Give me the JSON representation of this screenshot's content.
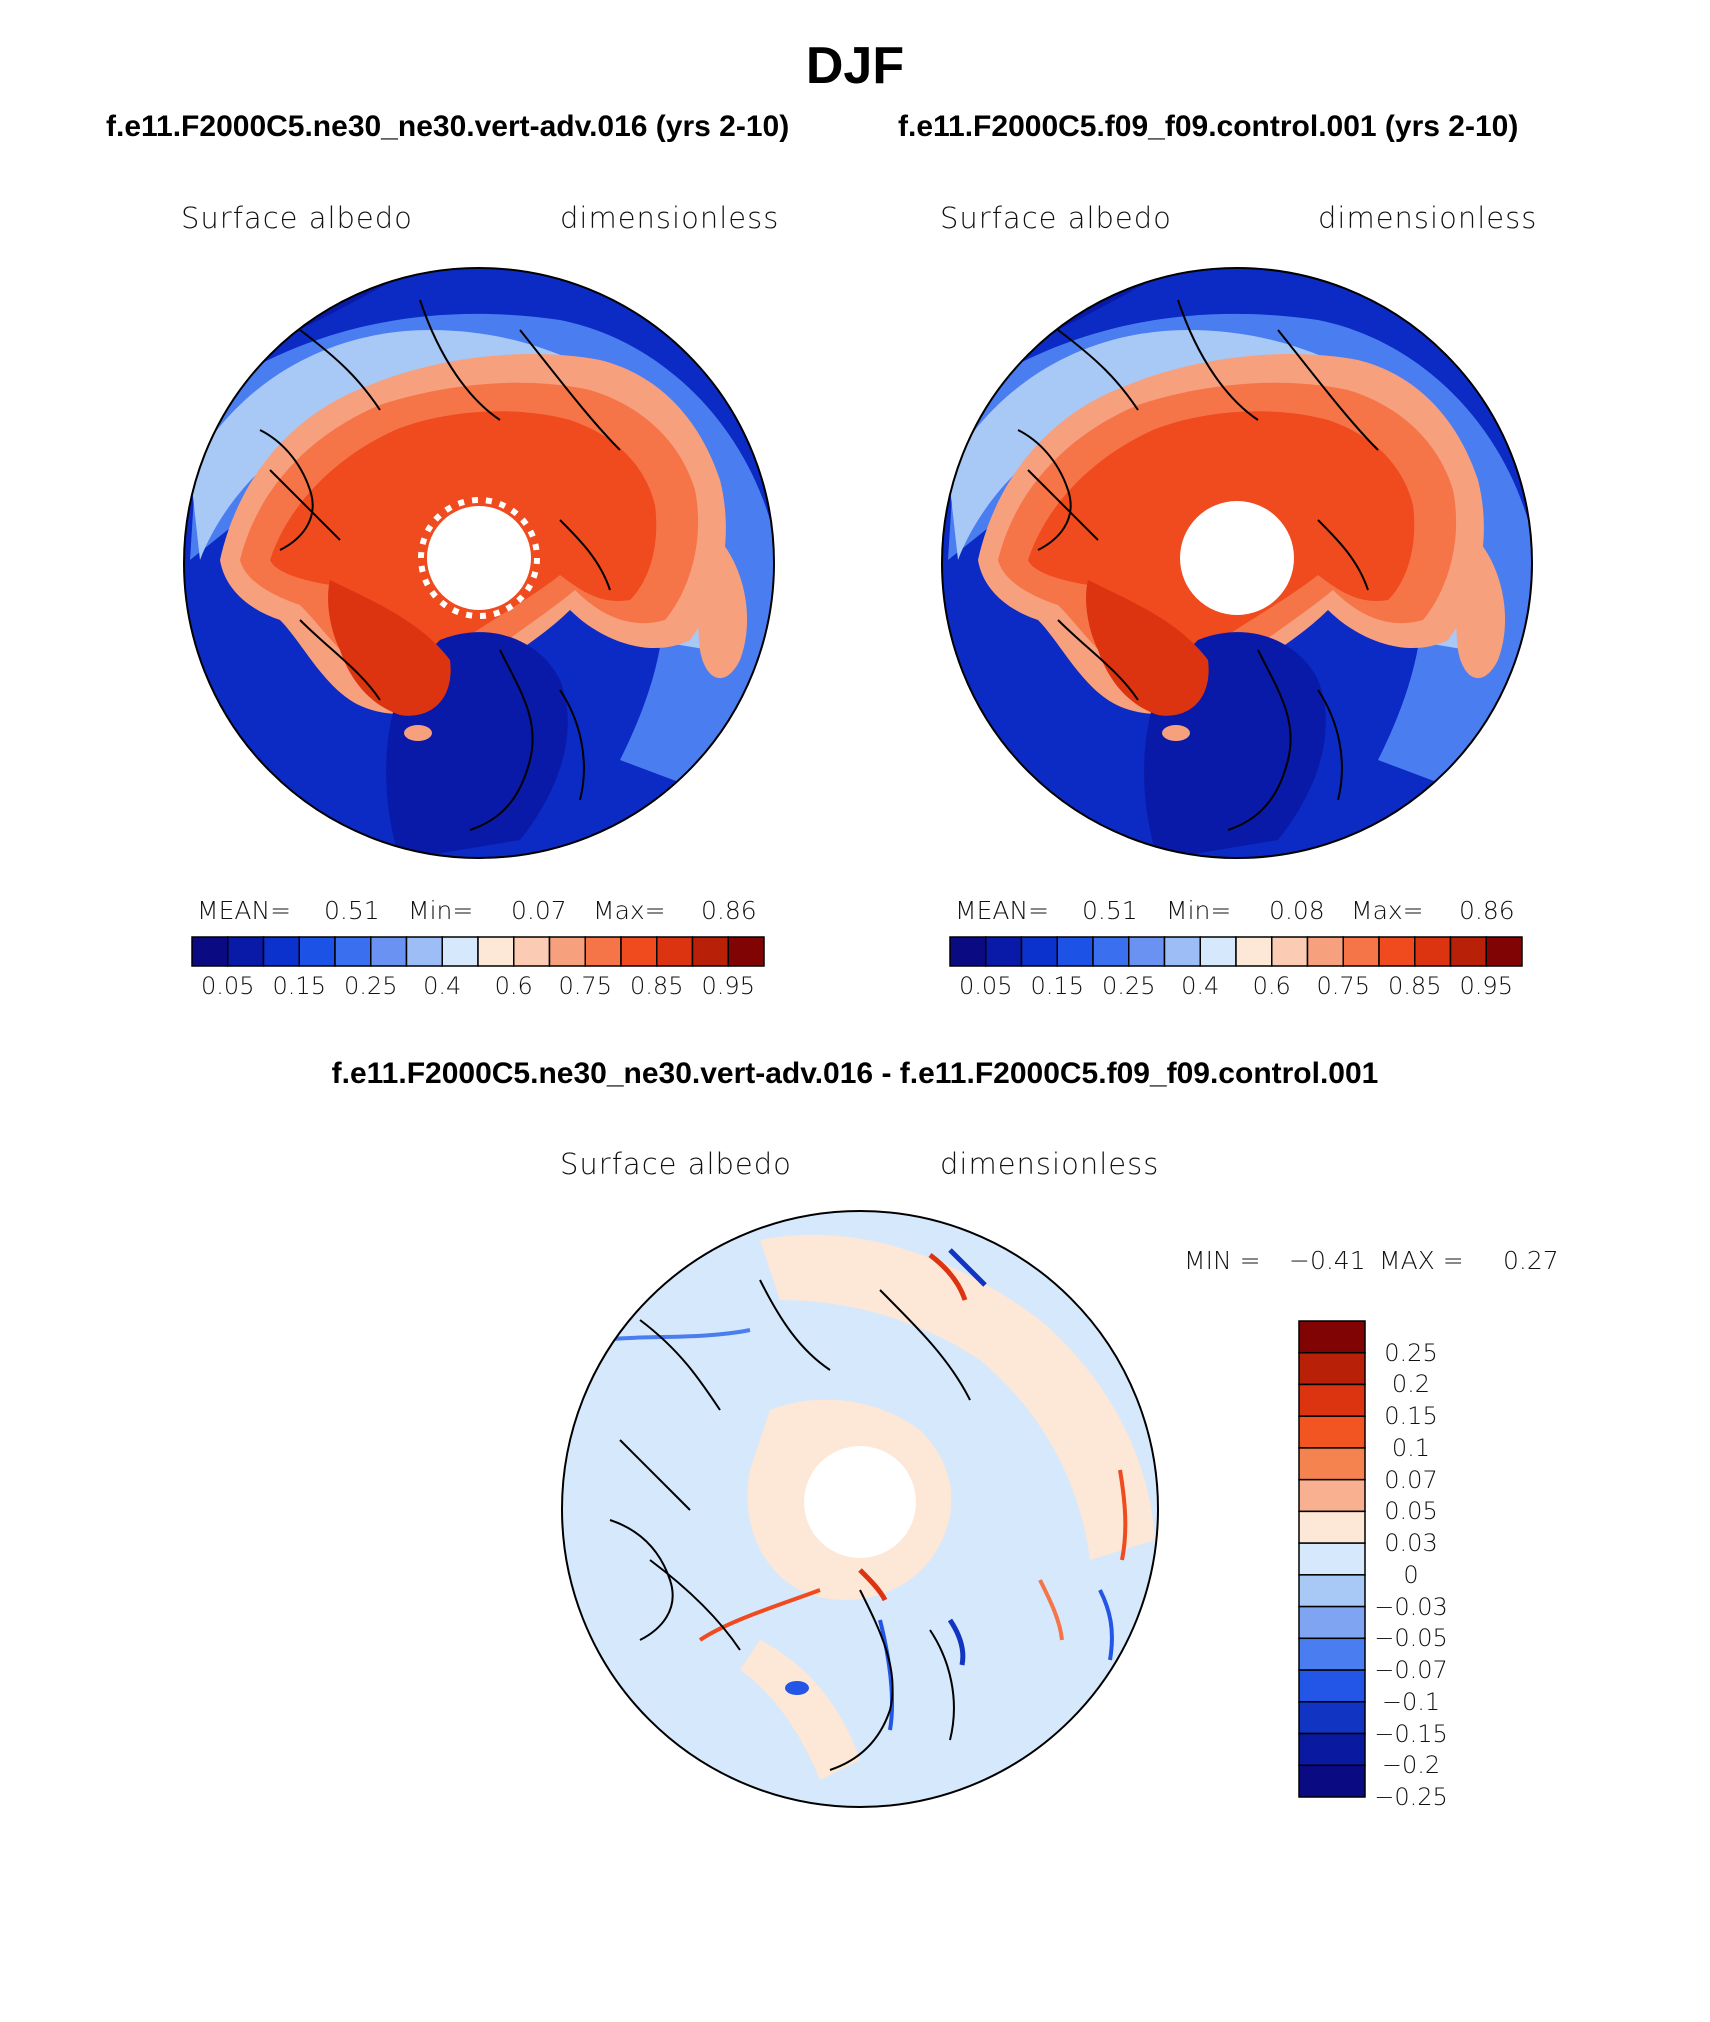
{
  "season": "DJF",
  "panels": [
    {
      "id": "model",
      "case": "f.e11.F2000C5.ne30_ne30.vert-adv.016 (yrs 2-10)",
      "variable": "Surface albedo",
      "units": "dimensionless",
      "stats": {
        "mean_label": "MEAN=",
        "mean": "0.51",
        "min_label": "Min=",
        "min": "0.07",
        "max_label": "Max=",
        "max": "0.86"
      }
    },
    {
      "id": "control",
      "case": "f.e11.F2000C5.f09_f09.control.001 (yrs 2-10)",
      "variable": "Surface albedo",
      "units": "dimensionless",
      "stats": {
        "mean_label": "MEAN=",
        "mean": "0.51",
        "min_label": "Min=",
        "min": "0.08",
        "max_label": "Max=",
        "max": "0.86"
      }
    }
  ],
  "diff": {
    "title": "f.e11.F2000C5.ne30_ne30.vert-adv.016 - f.e11.F2000C5.f09_f09.control.001",
    "variable": "Surface albedo",
    "units": "dimensionless",
    "stats": {
      "min_label": "MIN =",
      "min": "−0.41",
      "max_label": "MAX =",
      "max": "0.27"
    }
  },
  "colorbar_main": {
    "colors": [
      "#0a0a82",
      "#0a1aa8",
      "#0b32cc",
      "#1c52e6",
      "#3a70f0",
      "#6a92f2",
      "#9dbdf6",
      "#d6e8fb",
      "#fde7d6",
      "#fbcbb3",
      "#f7a07e",
      "#f57549",
      "#ef4b1e",
      "#dc3410",
      "#b82008",
      "#800404"
    ],
    "tick_labels": [
      "0.05",
      "0.15",
      "0.25",
      "0.4",
      "0.6",
      "0.75",
      "0.85",
      "0.95"
    ]
  },
  "colorbar_diff": {
    "colors": [
      "#800404",
      "#b82008",
      "#dc3410",
      "#f25521",
      "#f5834f",
      "#f9b090",
      "#fde7d6",
      "#d6e8fb",
      "#a8c8f6",
      "#7ea4f2",
      "#4a7ef0",
      "#2355e6",
      "#1234c2",
      "#0a1aa0",
      "#0a0a82"
    ],
    "tick_labels": [
      "0.25",
      "0.2",
      "0.15",
      "0.1",
      "0.07",
      "0.05",
      "0.03",
      "0",
      "−0.03",
      "−0.05",
      "−0.07",
      "−0.1",
      "−0.15",
      "−0.2",
      "−0.25"
    ]
  }
}
